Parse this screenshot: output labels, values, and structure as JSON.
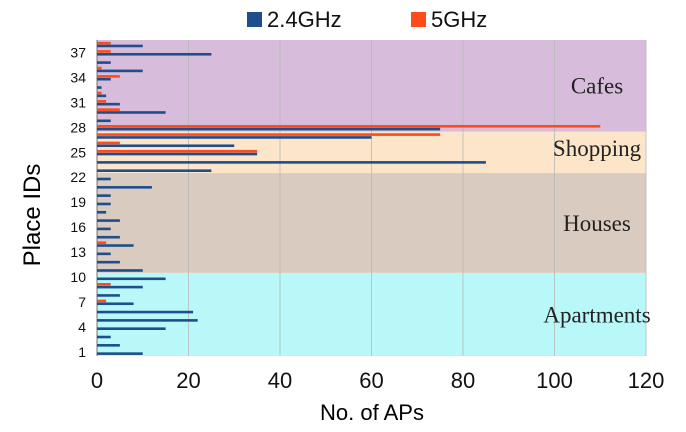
{
  "chart_data": {
    "type": "bar",
    "orientation": "horizontal",
    "xlabel": "No. of APs",
    "ylabel": "Place IDs",
    "xlim": [
      0,
      120
    ],
    "x_ticks": [
      0,
      20,
      40,
      60,
      80,
      100,
      120
    ],
    "y_ticks": [
      1,
      4,
      7,
      10,
      13,
      16,
      19,
      22,
      25,
      28,
      31,
      34,
      37
    ],
    "grid": true,
    "legend_position": "top-center",
    "places": [
      1,
      2,
      3,
      4,
      5,
      6,
      7,
      8,
      9,
      10,
      11,
      12,
      13,
      14,
      15,
      16,
      17,
      18,
      19,
      20,
      21,
      22,
      23,
      24,
      25,
      26,
      27,
      28,
      29,
      30,
      31,
      32,
      33,
      34,
      35,
      36,
      37,
      38
    ],
    "series": [
      {
        "name": "2.4GHz",
        "color": "#1f4e8c",
        "values": [
          10,
          5,
          3,
          15,
          22,
          21,
          8,
          5,
          10,
          15,
          10,
          5,
          3,
          8,
          5,
          3,
          5,
          2,
          3,
          3,
          12,
          3,
          25,
          85,
          35,
          30,
          60,
          75,
          3,
          15,
          5,
          2,
          1,
          3,
          10,
          3,
          25,
          10
        ]
      },
      {
        "name": "5GHz",
        "color": "#ff4b1a",
        "values": [
          0,
          0,
          0,
          0,
          0,
          0,
          2,
          0,
          3,
          0,
          0,
          0,
          0,
          2,
          0,
          0,
          0,
          0,
          0,
          0,
          0,
          0,
          0,
          0,
          35,
          5,
          75,
          110,
          0,
          5,
          2,
          1,
          0,
          5,
          1,
          0,
          3,
          3
        ]
      }
    ],
    "regions": [
      {
        "label": "Apartments",
        "from": 1,
        "to": 10,
        "color": "#b9f8f8"
      },
      {
        "label": "Houses",
        "from": 11,
        "to": 22,
        "color": "#d9cbbf"
      },
      {
        "label": "Shopping",
        "from": 23,
        "to": 28,
        "color": "#fde5c9"
      },
      {
        "label": "Cafes",
        "from": 28,
        "to": 38,
        "color": "#d7bddb"
      }
    ]
  }
}
